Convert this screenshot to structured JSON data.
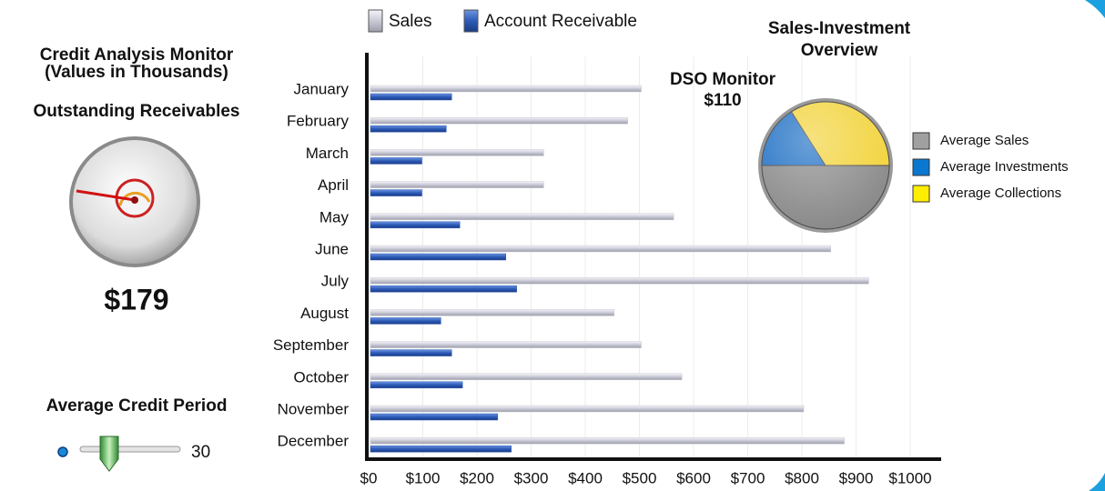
{
  "header": {
    "title": "Credit Analysis Monitor",
    "subtitle": "(Values in Thousands)"
  },
  "gauge": {
    "title": "Outstanding Receivables",
    "value_label": "$179"
  },
  "dso": {
    "title": "DSO Monitor",
    "value_label": "$110"
  },
  "slider": {
    "label": "Average Credit Period",
    "value": 30
  },
  "chart_data": [
    {
      "type": "hbar",
      "categories": [
        "January",
        "February",
        "March",
        "April",
        "May",
        "June",
        "July",
        "August",
        "September",
        "October",
        "November",
        "December"
      ],
      "series": [
        {
          "name": "Sales",
          "color": "#c9cad6",
          "values": [
            500,
            475,
            320,
            320,
            560,
            850,
            920,
            450,
            500,
            575,
            800,
            875
          ]
        },
        {
          "name": "Account Receivable",
          "color": "#2d5bb7",
          "values": [
            150,
            140,
            95,
            95,
            165,
            250,
            270,
            130,
            150,
            170,
            235,
            260
          ]
        }
      ],
      "xlim": [
        0,
        1000
      ],
      "xticks": [
        {
          "value": 0,
          "label": "$0"
        },
        {
          "value": 100,
          "label": "$100"
        },
        {
          "value": 200,
          "label": "$200"
        },
        {
          "value": 300,
          "label": "$300"
        },
        {
          "value": 400,
          "label": "$400"
        },
        {
          "value": 500,
          "label": "$500"
        },
        {
          "value": 600,
          "label": "$600"
        },
        {
          "value": 700,
          "label": "$700"
        },
        {
          "value": 800,
          "label": "$800"
        },
        {
          "value": 900,
          "label": "$900"
        },
        {
          "value": 1000,
          "label": "$1000"
        }
      ],
      "grid": true,
      "legend": "top"
    },
    {
      "type": "pie",
      "title": "Sales-Investment Overview",
      "categories": [
        "Average Sales",
        "Average Investments",
        "Average Collections"
      ],
      "values": [
        50,
        16,
        34
      ],
      "colors": [
        "#8a8a8a",
        "#1f6fc4",
        "#f2d33a"
      ],
      "legend_colors": [
        "#a0a0a0",
        "#0a78d0",
        "#ffee00"
      ],
      "legend": "right"
    }
  ]
}
